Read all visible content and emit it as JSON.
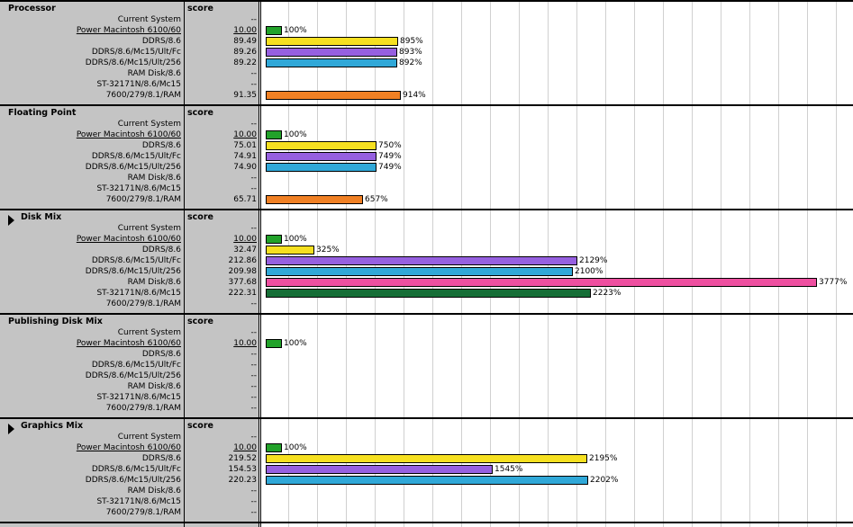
{
  "machines": [
    "Current System",
    "Power Macintosh 6100/60",
    "DDRS/8.6",
    "DDRS/8.6/Mc15/Ult/Fc",
    "DDRS/8.6/Mc15/Ult/256",
    "RAM Disk/8.6",
    "ST-32171N/8.6/Mc15",
    "7600/279/8.1/RAM"
  ],
  "colors": [
    "#ffffff",
    "#22a22a",
    "#f6e020",
    "#9660e0",
    "#30a8d8",
    "#ee4fa0",
    "#156e36",
    "#f08024"
  ],
  "score_header": "score",
  "sections": [
    {
      "title": "Processor",
      "triangle": false,
      "scores": [
        "--",
        "10.00",
        "89.49",
        "89.26",
        "89.22",
        "--",
        "--",
        "91.35"
      ],
      "percents": [
        null,
        100,
        895,
        893,
        892,
        null,
        null,
        914
      ]
    },
    {
      "title": "Floating Point",
      "triangle": false,
      "scores": [
        "--",
        "10.00",
        "75.01",
        "74.91",
        "74.90",
        "--",
        "--",
        "65.71"
      ],
      "percents": [
        null,
        100,
        750,
        749,
        749,
        null,
        null,
        657
      ]
    },
    {
      "title": "Disk Mix",
      "triangle": true,
      "scores": [
        "--",
        "10.00",
        "32.47",
        "212.86",
        "209.98",
        "377.68",
        "222.31",
        "--"
      ],
      "percents": [
        null,
        100,
        325,
        2129,
        2100,
        3777,
        2223,
        null
      ]
    },
    {
      "title": "Publishing Disk Mix",
      "triangle": false,
      "scores": [
        "--",
        "10.00",
        "--",
        "--",
        "--",
        "--",
        "--",
        "--"
      ],
      "percents": [
        null,
        100,
        null,
        null,
        null,
        null,
        null,
        null
      ]
    },
    {
      "title": "Graphics Mix",
      "triangle": true,
      "scores": [
        "--",
        "10.00",
        "219.52",
        "154.53",
        "220.23",
        "--",
        "--",
        "--"
      ],
      "percents": [
        null,
        100,
        2195,
        1545,
        2202,
        null,
        null,
        null
      ]
    }
  ]
}
